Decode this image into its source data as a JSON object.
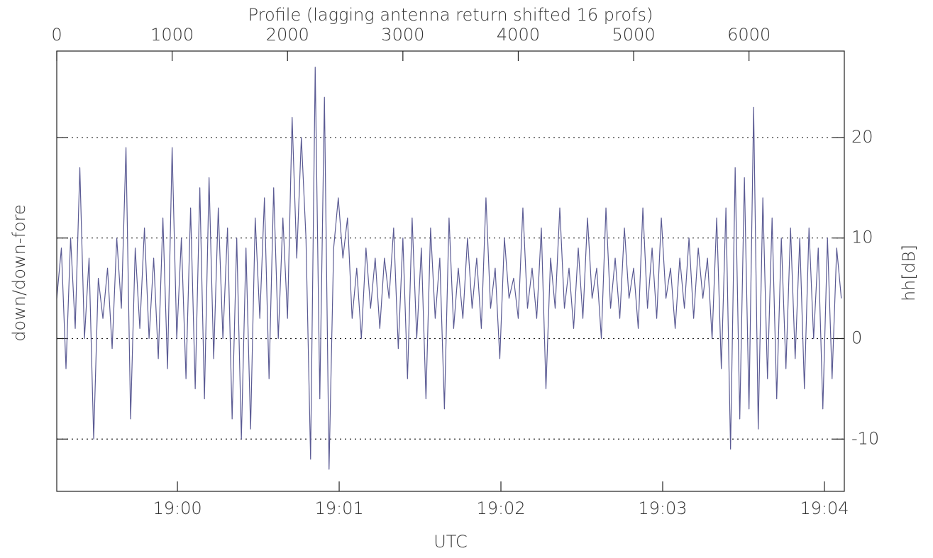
{
  "chart_data": {
    "type": "line",
    "xlabel": "Profile (lagging antenna return shifted 16 profs)",
    "x2label": "UTC",
    "ylabel": "down/down-fore",
    "y2label": "hh[dB]",
    "x": [
      0,
      40,
      80,
      120,
      160,
      200,
      240,
      280,
      320,
      360,
      400,
      440,
      480,
      520,
      560,
      600,
      640,
      680,
      720,
      760,
      800,
      840,
      880,
      920,
      960,
      1000,
      1040,
      1080,
      1120,
      1160,
      1200,
      1240,
      1280,
      1320,
      1360,
      1400,
      1440,
      1480,
      1520,
      1560,
      1600,
      1640,
      1680,
      1720,
      1760,
      1800,
      1840,
      1880,
      1920,
      1960,
      2000,
      2040,
      2080,
      2120,
      2160,
      2200,
      2240,
      2280,
      2320,
      2360,
      2400,
      2440,
      2480,
      2520,
      2560,
      2600,
      2640,
      2680,
      2720,
      2760,
      2800,
      2840,
      2880,
      2920,
      2960,
      3000,
      3040,
      3080,
      3120,
      3160,
      3200,
      3240,
      3280,
      3320,
      3360,
      3400,
      3440,
      3480,
      3520,
      3560,
      3600,
      3640,
      3680,
      3720,
      3760,
      3800,
      3840,
      3880,
      3920,
      3960,
      4000,
      4040,
      4080,
      4120,
      4160,
      4200,
      4240,
      4280,
      4320,
      4360,
      4400,
      4440,
      4480,
      4520,
      4560,
      4600,
      4640,
      4680,
      4720,
      4760,
      4800,
      4840,
      4880,
      4920,
      4960,
      5000,
      5040,
      5080,
      5120,
      5160,
      5200,
      5240,
      5280,
      5320,
      5360,
      5400,
      5440,
      5480,
      5520,
      5560,
      5600,
      5640,
      5680,
      5720,
      5760,
      5800,
      5840,
      5880,
      5920,
      5960,
      6000,
      6040,
      6080,
      6120,
      6160,
      6200,
      6240,
      6280,
      6320,
      6360,
      6400,
      6440,
      6480,
      6520,
      6560,
      6600,
      6640,
      6680,
      6720,
      6760,
      6800
    ],
    "series": [
      {
        "color": "#5b5b94",
        "values": [
          4,
          9,
          -3,
          10,
          1,
          17,
          0,
          8,
          -10,
          6,
          2,
          7,
          -1,
          10,
          3,
          19,
          -8,
          9,
          1,
          11,
          0,
          8,
          -2,
          12,
          -3,
          19,
          0,
          10,
          -4,
          13,
          -5,
          15,
          -6,
          16,
          -2,
          13,
          0,
          11,
          -8,
          10,
          -10,
          9,
          -9,
          12,
          2,
          14,
          -4,
          15,
          0,
          12,
          2,
          22,
          8,
          20,
          10,
          -12,
          27,
          -6,
          24,
          -13,
          9,
          14,
          8,
          12,
          2,
          7,
          0,
          9,
          3,
          8,
          1,
          8,
          4,
          11,
          -1,
          10,
          -4,
          12,
          0,
          9,
          -6,
          11,
          2,
          8,
          -7,
          12,
          1,
          7,
          2,
          10,
          3,
          8,
          1,
          14,
          3,
          7,
          -2,
          10,
          4,
          6,
          2,
          13,
          3,
          7,
          2,
          11,
          -5,
          8,
          3,
          13,
          3,
          7,
          1,
          9,
          2,
          12,
          4,
          7,
          0,
          13,
          3,
          8,
          2,
          11,
          4,
          7,
          1,
          13,
          3,
          9,
          2,
          12,
          4,
          7,
          1,
          8,
          3,
          10,
          2,
          9,
          4,
          8,
          0,
          12,
          -3,
          13,
          -11,
          17,
          -8,
          16,
          -7,
          23,
          -9,
          14,
          -4,
          12,
          -6,
          10,
          -3,
          11,
          -2,
          10,
          -5,
          11,
          0,
          9,
          -7,
          10,
          -4,
          9,
          4
        ]
      }
    ],
    "xlim": [
      0,
      6826
    ],
    "xticks": [
      0,
      1000,
      2000,
      3000,
      4000,
      5000,
      6000
    ],
    "x2lim": [
      1139.254,
      1144.123
    ],
    "x2ticks": [
      {
        "value": 1140,
        "label": "19:00"
      },
      {
        "value": 1141,
        "label": "19:01"
      },
      {
        "value": 1142,
        "label": "19:02"
      },
      {
        "value": 1143,
        "label": "19:03"
      },
      {
        "value": 1144,
        "label": "19:04"
      }
    ],
    "ylim": [
      -15.2,
      28.6
    ],
    "yticks": [
      -10,
      0,
      10,
      20
    ],
    "grid": true
  }
}
